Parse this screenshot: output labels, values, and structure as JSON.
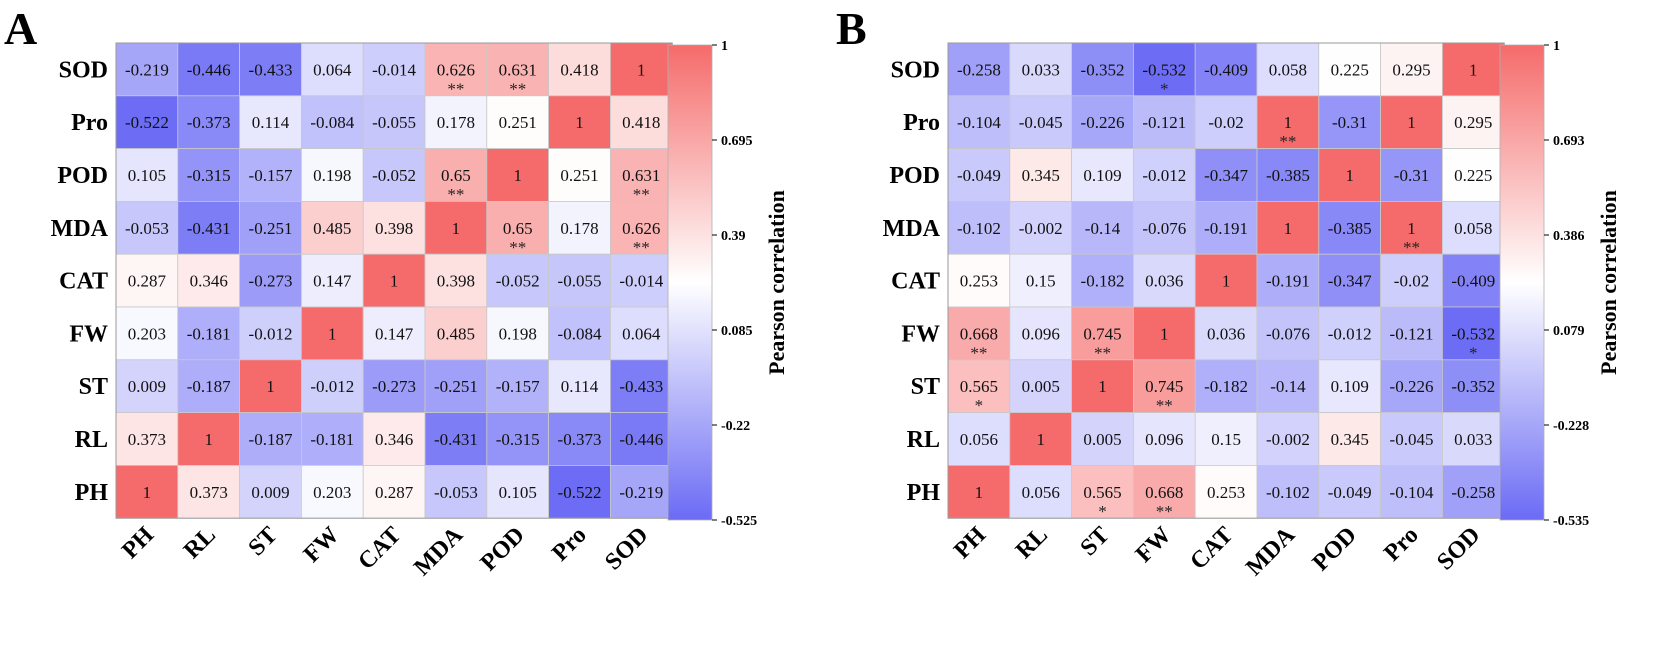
{
  "chart_data": [
    {
      "type": "heatmap",
      "panel_label": "A",
      "row_labels": [
        "SOD",
        "Pro",
        "POD",
        "MDA",
        "CAT",
        "FW",
        "ST",
        "RL",
        "PH"
      ],
      "col_labels": [
        "PH",
        "RL",
        "ST",
        "FW",
        "CAT",
        "MDA",
        "POD",
        "Pro",
        "SOD"
      ],
      "cells": [
        [
          {
            "v": "-0.219",
            "s": ""
          },
          {
            "v": "-0.446",
            "s": ""
          },
          {
            "v": "-0.433",
            "s": ""
          },
          {
            "v": "0.064",
            "s": ""
          },
          {
            "v": "-0.014",
            "s": ""
          },
          {
            "v": "0.626",
            "s": "**"
          },
          {
            "v": "0.631",
            "s": "**"
          },
          {
            "v": "0.418",
            "s": ""
          },
          {
            "v": "1",
            "s": ""
          }
        ],
        [
          {
            "v": "-0.522",
            "s": ""
          },
          {
            "v": "-0.373",
            "s": ""
          },
          {
            "v": "0.114",
            "s": ""
          },
          {
            "v": "-0.084",
            "s": ""
          },
          {
            "v": "-0.055",
            "s": ""
          },
          {
            "v": "0.178",
            "s": ""
          },
          {
            "v": "0.251",
            "s": ""
          },
          {
            "v": "1",
            "s": ""
          },
          {
            "v": "0.418",
            "s": ""
          }
        ],
        [
          {
            "v": "0.105",
            "s": ""
          },
          {
            "v": "-0.315",
            "s": ""
          },
          {
            "v": "-0.157",
            "s": ""
          },
          {
            "v": "0.198",
            "s": ""
          },
          {
            "v": "-0.052",
            "s": ""
          },
          {
            "v": "0.65",
            "s": "**"
          },
          {
            "v": "1",
            "s": ""
          },
          {
            "v": "0.251",
            "s": ""
          },
          {
            "v": "0.631",
            "s": "**"
          }
        ],
        [
          {
            "v": "-0.053",
            "s": ""
          },
          {
            "v": "-0.431",
            "s": ""
          },
          {
            "v": "-0.251",
            "s": ""
          },
          {
            "v": "0.485",
            "s": ""
          },
          {
            "v": "0.398",
            "s": ""
          },
          {
            "v": "1",
            "s": ""
          },
          {
            "v": "0.65",
            "s": "**"
          },
          {
            "v": "0.178",
            "s": ""
          },
          {
            "v": "0.626",
            "s": "**"
          }
        ],
        [
          {
            "v": "0.287",
            "s": ""
          },
          {
            "v": "0.346",
            "s": ""
          },
          {
            "v": "-0.273",
            "s": ""
          },
          {
            "v": "0.147",
            "s": ""
          },
          {
            "v": "1",
            "s": ""
          },
          {
            "v": "0.398",
            "s": ""
          },
          {
            "v": "-0.052",
            "s": ""
          },
          {
            "v": "-0.055",
            "s": ""
          },
          {
            "v": "-0.014",
            "s": ""
          }
        ],
        [
          {
            "v": "0.203",
            "s": ""
          },
          {
            "v": "-0.181",
            "s": ""
          },
          {
            "v": "-0.012",
            "s": ""
          },
          {
            "v": "1",
            "s": ""
          },
          {
            "v": "0.147",
            "s": ""
          },
          {
            "v": "0.485",
            "s": ""
          },
          {
            "v": "0.198",
            "s": ""
          },
          {
            "v": "-0.084",
            "s": ""
          },
          {
            "v": "0.064",
            "s": ""
          }
        ],
        [
          {
            "v": "0.009",
            "s": ""
          },
          {
            "v": "-0.187",
            "s": ""
          },
          {
            "v": "1",
            "s": ""
          },
          {
            "v": "-0.012",
            "s": ""
          },
          {
            "v": "-0.273",
            "s": ""
          },
          {
            "v": "-0.251",
            "s": ""
          },
          {
            "v": "-0.157",
            "s": ""
          },
          {
            "v": "0.114",
            "s": ""
          },
          {
            "v": "-0.433",
            "s": ""
          }
        ],
        [
          {
            "v": "0.373",
            "s": ""
          },
          {
            "v": "1",
            "s": ""
          },
          {
            "v": "-0.187",
            "s": ""
          },
          {
            "v": "-0.181",
            "s": ""
          },
          {
            "v": "0.346",
            "s": ""
          },
          {
            "v": "-0.431",
            "s": ""
          },
          {
            "v": "-0.315",
            "s": ""
          },
          {
            "v": "-0.373",
            "s": ""
          },
          {
            "v": "-0.446",
            "s": ""
          }
        ],
        [
          {
            "v": "1",
            "s": ""
          },
          {
            "v": "0.373",
            "s": ""
          },
          {
            "v": "0.009",
            "s": ""
          },
          {
            "v": "0.203",
            "s": ""
          },
          {
            "v": "0.287",
            "s": ""
          },
          {
            "v": "-0.053",
            "s": ""
          },
          {
            "v": "0.105",
            "s": ""
          },
          {
            "v": "-0.522",
            "s": ""
          },
          {
            "v": "-0.219",
            "s": ""
          }
        ]
      ],
      "colorbar": {
        "label": "Pearson correlation",
        "min": -0.525,
        "max": 1,
        "ticks": [
          "1",
          "0.695",
          "0.39",
          "0.085",
          "-0.22",
          "-0.525"
        ],
        "low_color": "#6b6bf5",
        "mid_color": "#ffffff",
        "high_color": "#f56b6b"
      }
    },
    {
      "type": "heatmap",
      "panel_label": "B",
      "row_labels": [
        "SOD",
        "Pro",
        "POD",
        "MDA",
        "CAT",
        "FW",
        "ST",
        "RL",
        "PH"
      ],
      "col_labels": [
        "PH",
        "RL",
        "ST",
        "FW",
        "CAT",
        "MDA",
        "POD",
        "Pro",
        "SOD"
      ],
      "cells": [
        [
          {
            "v": "-0.258",
            "s": ""
          },
          {
            "v": "0.033",
            "s": ""
          },
          {
            "v": "-0.352",
            "s": ""
          },
          {
            "v": "-0.532",
            "s": "*"
          },
          {
            "v": "-0.409",
            "s": ""
          },
          {
            "v": "0.058",
            "s": ""
          },
          {
            "v": "0.225",
            "s": ""
          },
          {
            "v": "0.295",
            "s": ""
          },
          {
            "v": "1",
            "s": ""
          }
        ],
        [
          {
            "v": "-0.104",
            "s": ""
          },
          {
            "v": "-0.045",
            "s": ""
          },
          {
            "v": "-0.226",
            "s": ""
          },
          {
            "v": "-0.121",
            "s": ""
          },
          {
            "v": "-0.02",
            "s": ""
          },
          {
            "v": "1",
            "s": "**"
          },
          {
            "v": "-0.31",
            "s": ""
          },
          {
            "v": "1",
            "s": ""
          },
          {
            "v": "0.295",
            "s": ""
          }
        ],
        [
          {
            "v": "-0.049",
            "s": ""
          },
          {
            "v": "0.345",
            "s": ""
          },
          {
            "v": "0.109",
            "s": ""
          },
          {
            "v": "-0.012",
            "s": ""
          },
          {
            "v": "-0.347",
            "s": ""
          },
          {
            "v": "-0.385",
            "s": ""
          },
          {
            "v": "1",
            "s": ""
          },
          {
            "v": "-0.31",
            "s": ""
          },
          {
            "v": "0.225",
            "s": ""
          }
        ],
        [
          {
            "v": "-0.102",
            "s": ""
          },
          {
            "v": "-0.002",
            "s": ""
          },
          {
            "v": "-0.14",
            "s": ""
          },
          {
            "v": "-0.076",
            "s": ""
          },
          {
            "v": "-0.191",
            "s": ""
          },
          {
            "v": "1",
            "s": ""
          },
          {
            "v": "-0.385",
            "s": ""
          },
          {
            "v": "1",
            "s": "**"
          },
          {
            "v": "0.058",
            "s": ""
          }
        ],
        [
          {
            "v": "0.253",
            "s": ""
          },
          {
            "v": "0.15",
            "s": ""
          },
          {
            "v": "-0.182",
            "s": ""
          },
          {
            "v": "0.036",
            "s": ""
          },
          {
            "v": "1",
            "s": ""
          },
          {
            "v": "-0.191",
            "s": ""
          },
          {
            "v": "-0.347",
            "s": ""
          },
          {
            "v": "-0.02",
            "s": ""
          },
          {
            "v": "-0.409",
            "s": ""
          }
        ],
        [
          {
            "v": "0.668",
            "s": "**"
          },
          {
            "v": "0.096",
            "s": ""
          },
          {
            "v": "0.745",
            "s": "**"
          },
          {
            "v": "1",
            "s": ""
          },
          {
            "v": "0.036",
            "s": ""
          },
          {
            "v": "-0.076",
            "s": ""
          },
          {
            "v": "-0.012",
            "s": ""
          },
          {
            "v": "-0.121",
            "s": ""
          },
          {
            "v": "-0.532",
            "s": "*"
          }
        ],
        [
          {
            "v": "0.565",
            "s": "*"
          },
          {
            "v": "0.005",
            "s": ""
          },
          {
            "v": "1",
            "s": ""
          },
          {
            "v": "0.745",
            "s": "**"
          },
          {
            "v": "-0.182",
            "s": ""
          },
          {
            "v": "-0.14",
            "s": ""
          },
          {
            "v": "0.109",
            "s": ""
          },
          {
            "v": "-0.226",
            "s": ""
          },
          {
            "v": "-0.352",
            "s": ""
          }
        ],
        [
          {
            "v": "0.056",
            "s": ""
          },
          {
            "v": "1",
            "s": ""
          },
          {
            "v": "0.005",
            "s": ""
          },
          {
            "v": "0.096",
            "s": ""
          },
          {
            "v": "0.15",
            "s": ""
          },
          {
            "v": "-0.002",
            "s": ""
          },
          {
            "v": "0.345",
            "s": ""
          },
          {
            "v": "-0.045",
            "s": ""
          },
          {
            "v": "0.033",
            "s": ""
          }
        ],
        [
          {
            "v": "1",
            "s": ""
          },
          {
            "v": "0.056",
            "s": ""
          },
          {
            "v": "0.565",
            "s": "*"
          },
          {
            "v": "0.668",
            "s": "**"
          },
          {
            "v": "0.253",
            "s": ""
          },
          {
            "v": "-0.102",
            "s": ""
          },
          {
            "v": "-0.049",
            "s": ""
          },
          {
            "v": "-0.104",
            "s": ""
          },
          {
            "v": "-0.258",
            "s": ""
          }
        ]
      ],
      "colorbar": {
        "label": "Pearson correlation",
        "min": -0.535,
        "max": 1,
        "ticks": [
          "1",
          "0.693",
          "0.386",
          "0.079",
          "-0.228",
          "-0.535"
        ],
        "low_color": "#6b6bf5",
        "mid_color": "#ffffff",
        "high_color": "#f56b6b"
      }
    }
  ]
}
